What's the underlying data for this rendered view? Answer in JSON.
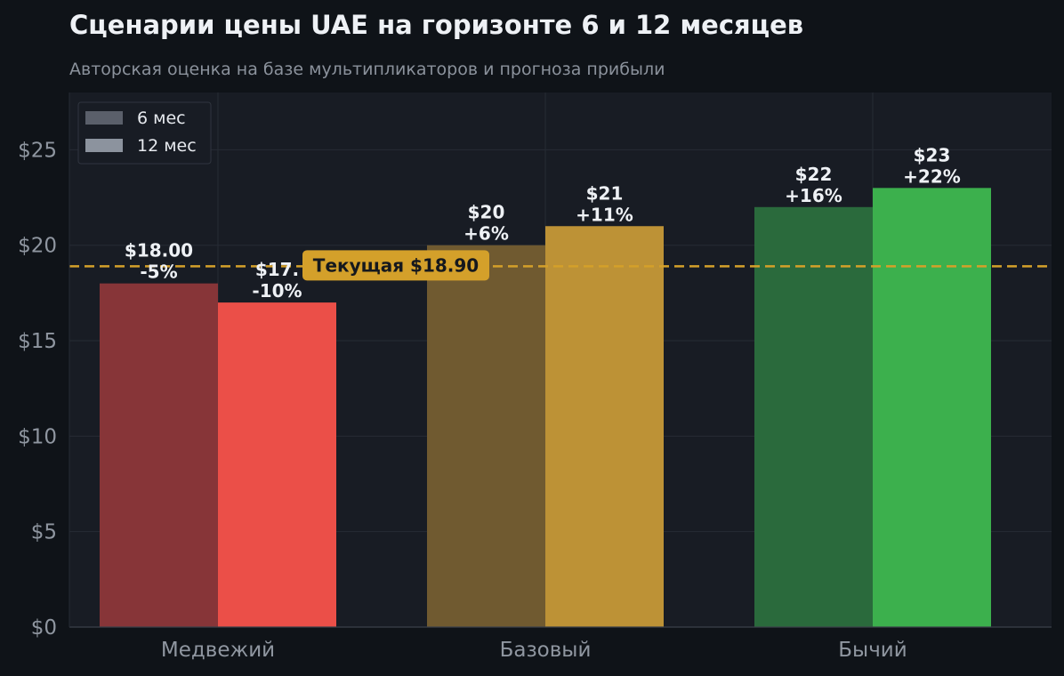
{
  "title": "Сценарии цены UAE на горизонте 6 и 12 месяцев",
  "subtitle": "Авторская оценка на базе мультипликаторов и прогноза прибыли",
  "colors": {
    "background": "#0f1318",
    "plot_background": "#181c24",
    "grid": "#262b34",
    "reference": "#d4a02a"
  },
  "chart_data": {
    "type": "bar",
    "categories": [
      "Медвежий",
      "Базовый",
      "Бычий"
    ],
    "series": [
      {
        "name": "6 мес",
        "values": [
          18.0,
          20.0,
          22.0
        ],
        "value_labels": [
          "$18.00",
          "$20",
          "$22"
        ],
        "change_labels": [
          "-5%",
          "+6%",
          "+16%"
        ],
        "colors": [
          "#873538",
          "#705a30",
          "#2a6a3c"
        ]
      },
      {
        "name": "12 мес",
        "values": [
          17.0,
          21.0,
          23.0
        ],
        "value_labels": [
          "$17.",
          "$21",
          "$23"
        ],
        "change_labels": [
          "-10%",
          "+11%",
          "+22%"
        ],
        "colors": [
          "#eb4f48",
          "#bd9236",
          "#3cb04d"
        ]
      }
    ],
    "legend_colors": [
      "#5a5f6a",
      "#8c939e"
    ],
    "ylim": [
      0,
      28
    ],
    "yticks": [
      0,
      5,
      10,
      15,
      20,
      25
    ],
    "ytick_labels": [
      "$0",
      "$5",
      "$10",
      "$15",
      "$20",
      "$25"
    ],
    "ylabel": "",
    "xlabel": "",
    "reference_line": {
      "value": 18.9,
      "label": "Текущая $18.90"
    },
    "legend_position": "top-left",
    "grid": true
  }
}
